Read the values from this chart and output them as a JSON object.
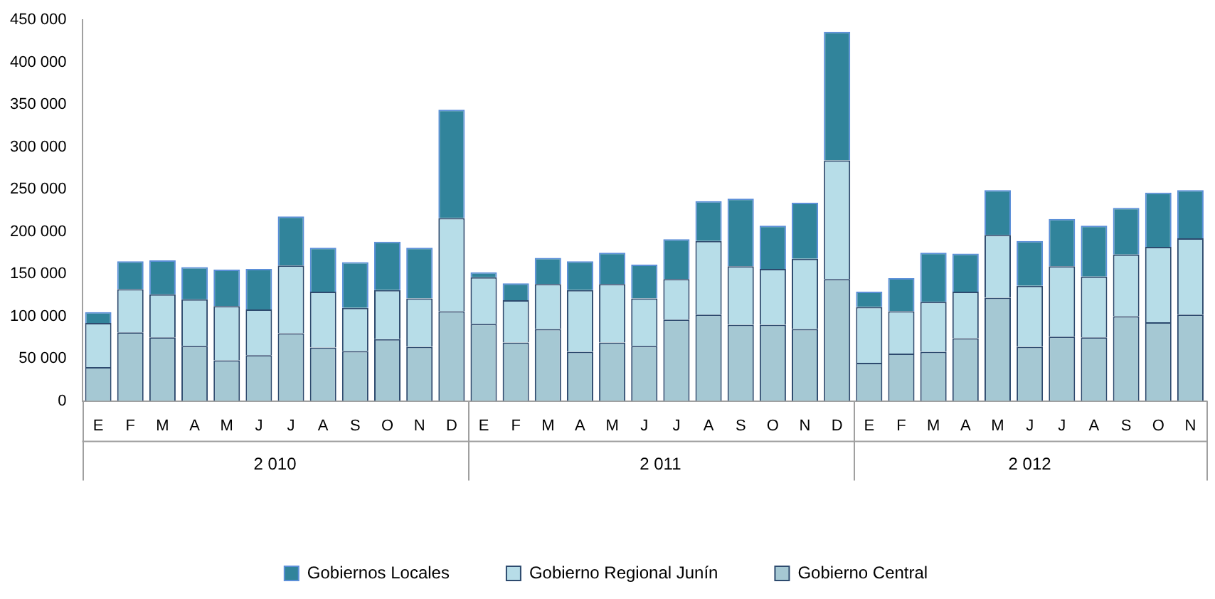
{
  "chart_data": {
    "type": "bar",
    "stacked": true,
    "categories": [
      "E",
      "F",
      "M",
      "A",
      "M",
      "J",
      "J",
      "A",
      "S",
      "O",
      "N",
      "D",
      "E",
      "F",
      "M",
      "A",
      "M",
      "J",
      "J",
      "A",
      "S",
      "O",
      "N",
      "D",
      "E",
      "F",
      "M",
      "A",
      "M",
      "J",
      "J",
      "A",
      "S",
      "O",
      "N"
    ],
    "series": [
      {
        "name": "Gobierno Central",
        "color": "#a5c8d3",
        "values": [
          40000,
          81000,
          75000,
          65000,
          48000,
          54000,
          80000,
          63000,
          59000,
          73000,
          64000,
          106000,
          91000,
          69000,
          85000,
          58000,
          69000,
          65000,
          96000,
          102000,
          90000,
          90000,
          85000,
          144000,
          45000,
          56000,
          58000,
          74000,
          122000,
          64000,
          76000,
          75000,
          100000,
          93000,
          102000
        ]
      },
      {
        "name": "Gobierno Regional Junín",
        "color": "#b7dde8",
        "values": [
          52000,
          51000,
          51000,
          55000,
          64000,
          54000,
          80000,
          66000,
          51000,
          58000,
          57000,
          110000,
          55000,
          50000,
          53000,
          73000,
          69000,
          56000,
          48000,
          87000,
          69000,
          66000,
          83000,
          140000,
          66000,
          50000,
          59000,
          55000,
          74000,
          72000,
          83000,
          72000,
          73000,
          89000,
          90000
        ]
      },
      {
        "name": "Gobiernos Locales",
        "color": "#31849b",
        "values": [
          13000,
          33000,
          40000,
          38000,
          43000,
          48000,
          58000,
          52000,
          54000,
          57000,
          60000,
          128000,
          6000,
          20000,
          31000,
          34000,
          37000,
          40000,
          47000,
          47000,
          80000,
          51000,
          66000,
          152000,
          18000,
          39000,
          58000,
          45000,
          53000,
          53000,
          56000,
          60000,
          55000,
          64000,
          57000
        ]
      }
    ],
    "ylim": [
      0,
      450000
    ],
    "yticks": [
      {
        "value": 0,
        "label": "0"
      },
      {
        "value": 50000,
        "label": "50 000"
      },
      {
        "value": 100000,
        "label": "100 000"
      },
      {
        "value": 150000,
        "label": "150 000"
      },
      {
        "value": 200000,
        "label": "200 000"
      },
      {
        "value": 250000,
        "label": "250 000"
      },
      {
        "value": 300000,
        "label": "300 000"
      },
      {
        "value": 350000,
        "label": "350 000"
      },
      {
        "value": 400000,
        "label": "400 000"
      },
      {
        "value": 450000,
        "label": "450 000"
      }
    ],
    "annotations": [
      "2 010",
      "2 011",
      "2 012"
    ],
    "grid": false,
    "legend": "bottom"
  }
}
